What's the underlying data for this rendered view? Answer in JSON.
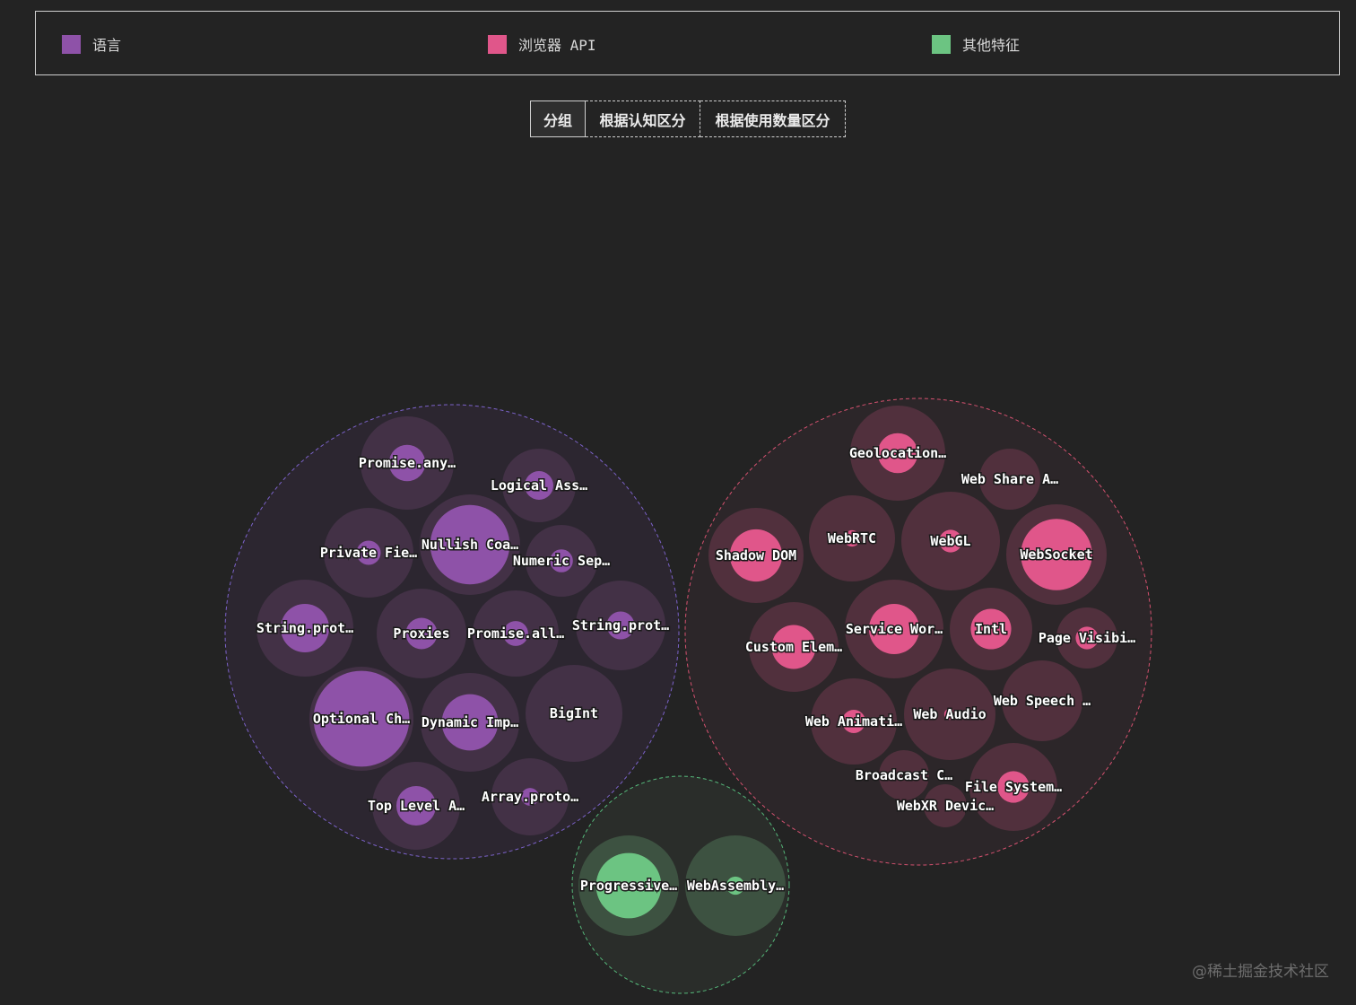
{
  "legend": [
    {
      "label": "语言",
      "color": "#8e52a8"
    },
    {
      "label": "浏览器 API",
      "color": "#e0568a"
    },
    {
      "label": "其他特征",
      "color": "#6cc482"
    }
  ],
  "tabs": [
    {
      "label": "分组",
      "active": true
    },
    {
      "label": "根据认知区分",
      "active": false
    },
    {
      "label": "根据使用数量区分",
      "active": false
    }
  ],
  "watermark": "@稀土掘金技术社区",
  "chart_data": {
    "type": "circle-packing",
    "groups": [
      {
        "name": "语言",
        "color": "#8e52a8",
        "items": [
          {
            "label": "Promise.any…",
            "inner_ratio": 0.39
          },
          {
            "label": "Logical Ass…",
            "inner_ratio": 0.39
          },
          {
            "label": "Private Fie…",
            "inner_ratio": 0.27
          },
          {
            "label": "Nullish Coa…",
            "inner_ratio": 0.79
          },
          {
            "label": "Numeric Sep…",
            "inner_ratio": 0.32
          },
          {
            "label": "String.prot…",
            "inner_ratio": 0.5
          },
          {
            "label": "Proxies",
            "inner_ratio": 0.35
          },
          {
            "label": "Promise.all…",
            "inner_ratio": 0.29
          },
          {
            "label": "String.prot…",
            "inner_ratio": 0.31
          },
          {
            "label": "Optional Ch…",
            "inner_ratio": 0.92
          },
          {
            "label": "Dynamic Imp…",
            "inner_ratio": 0.57
          },
          {
            "label": "BigInt",
            "inner_ratio": 0.0
          },
          {
            "label": "Top Level A…",
            "inner_ratio": 0.45
          },
          {
            "label": "Array.proto…",
            "inner_ratio": 0.23
          }
        ]
      },
      {
        "name": "浏览器 API",
        "color": "#e0568a",
        "items": [
          {
            "label": "Geolocation…",
            "inner_ratio": 0.42
          },
          {
            "label": "Web Share A…",
            "inner_ratio": 0.0
          },
          {
            "label": "Shadow DOM",
            "inner_ratio": 0.55
          },
          {
            "label": "WebRTC",
            "inner_ratio": 0.19
          },
          {
            "label": "WebGL",
            "inner_ratio": 0.23
          },
          {
            "label": "WebSocket",
            "inner_ratio": 0.71
          },
          {
            "label": "Custom Elem…",
            "inner_ratio": 0.49
          },
          {
            "label": "Service Wor…",
            "inner_ratio": 0.51
          },
          {
            "label": "Intl",
            "inner_ratio": 0.49
          },
          {
            "label": "Page Visibi…",
            "inner_ratio": 0.37
          },
          {
            "label": "Web Animati…",
            "inner_ratio": 0.27
          },
          {
            "label": "Web Audio",
            "inner_ratio": 0.12
          },
          {
            "label": "Web Speech …",
            "inner_ratio": 0.0
          },
          {
            "label": "Broadcast C…",
            "inner_ratio": 0.0
          },
          {
            "label": "File System…",
            "inner_ratio": 0.36
          },
          {
            "label": "WebXR Devic…",
            "inner_ratio": 0.0
          }
        ]
      },
      {
        "name": "其他特征",
        "color": "#6cc482",
        "items": [
          {
            "label": "Progressive…",
            "inner_ratio": 0.65
          },
          {
            "label": "WebAssembly…",
            "inner_ratio": 0.18
          }
        ]
      }
    ]
  }
}
